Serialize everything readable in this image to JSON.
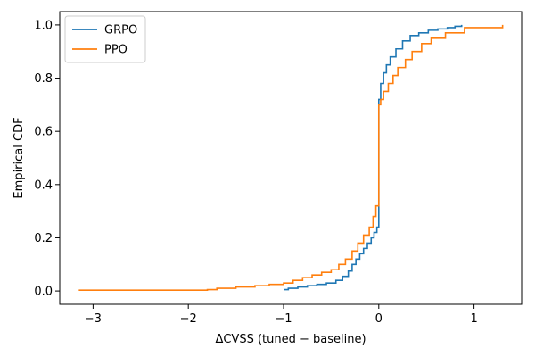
{
  "chart_data": {
    "type": "line",
    "title": "",
    "xlabel": "ΔCVSS (tuned − baseline)",
    "ylabel": "Empirical CDF",
    "xlim": [
      -3.35,
      1.5
    ],
    "ylim": [
      -0.05,
      1.05
    ],
    "xticks": [
      -3,
      -2,
      -1,
      0,
      1
    ],
    "xtick_labels": [
      "−3",
      "−2",
      "−1",
      "0",
      "1"
    ],
    "yticks": [
      0.0,
      0.2,
      0.4,
      0.6,
      0.8,
      1.0
    ],
    "ytick_labels": [
      "0.0",
      "0.2",
      "0.4",
      "0.6",
      "0.8",
      "1.0"
    ],
    "grid": false,
    "legend_position": "top-left",
    "step": true,
    "series": [
      {
        "name": "GRPO",
        "color": "#1f77b4",
        "x": [
          -1.0,
          -0.95,
          -0.85,
          -0.75,
          -0.65,
          -0.55,
          -0.45,
          -0.38,
          -0.32,
          -0.28,
          -0.24,
          -0.2,
          -0.16,
          -0.12,
          -0.08,
          -0.05,
          -0.02,
          0.0,
          0.0,
          0.02,
          0.05,
          0.08,
          0.12,
          0.18,
          0.25,
          0.33,
          0.42,
          0.52,
          0.62,
          0.72,
          0.8,
          0.87
        ],
        "y": [
          0.005,
          0.01,
          0.015,
          0.02,
          0.025,
          0.03,
          0.04,
          0.055,
          0.075,
          0.1,
          0.12,
          0.14,
          0.16,
          0.18,
          0.2,
          0.22,
          0.24,
          0.36,
          0.72,
          0.78,
          0.82,
          0.85,
          0.88,
          0.91,
          0.94,
          0.96,
          0.97,
          0.98,
          0.985,
          0.99,
          0.995,
          1.0
        ]
      },
      {
        "name": "PPO",
        "color": "#ff7f0e",
        "x": [
          -3.15,
          -1.8,
          -1.7,
          -1.5,
          -1.3,
          -1.15,
          -1.0,
          -0.9,
          -0.8,
          -0.7,
          -0.6,
          -0.5,
          -0.42,
          -0.35,
          -0.28,
          -0.22,
          -0.16,
          -0.1,
          -0.06,
          -0.03,
          0.0,
          0.0,
          0.02,
          0.05,
          0.1,
          0.15,
          0.2,
          0.28,
          0.35,
          0.45,
          0.55,
          0.7,
          0.9,
          1.3
        ],
        "y": [
          0.003,
          0.005,
          0.01,
          0.015,
          0.02,
          0.025,
          0.03,
          0.04,
          0.05,
          0.06,
          0.07,
          0.08,
          0.1,
          0.12,
          0.15,
          0.18,
          0.21,
          0.24,
          0.28,
          0.32,
          0.37,
          0.7,
          0.72,
          0.75,
          0.78,
          0.81,
          0.84,
          0.87,
          0.9,
          0.93,
          0.95,
          0.97,
          0.99,
          1.0
        ]
      }
    ]
  }
}
